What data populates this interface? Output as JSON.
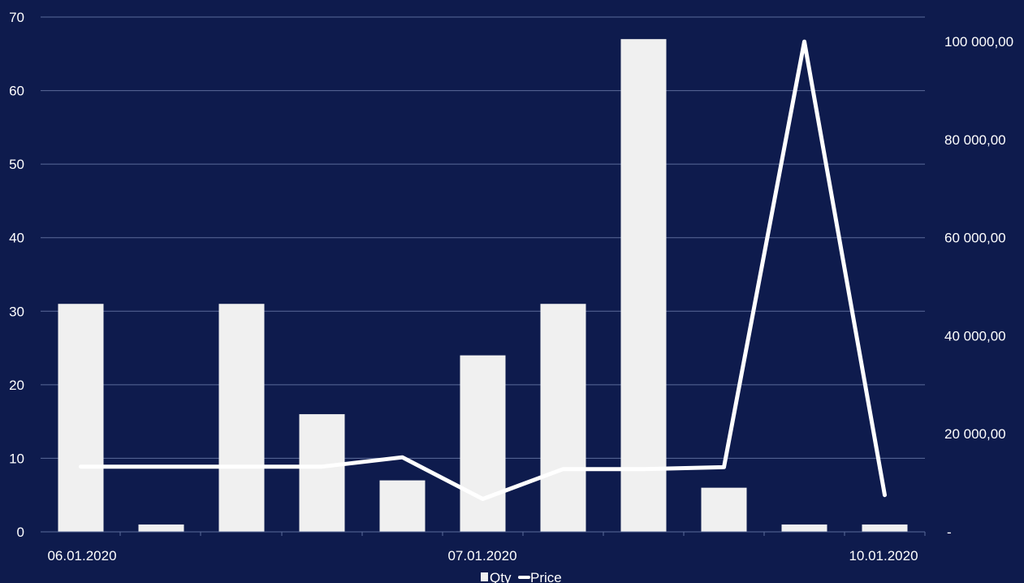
{
  "chart_data": {
    "type": "bar",
    "categories": [
      "06.01.2020",
      "",
      "",
      "",
      "",
      "07.01.2020",
      "",
      "",
      "",
      "",
      "10.01.2020"
    ],
    "series": [
      {
        "name": "Qty",
        "type": "bar",
        "axis": "left",
        "values": [
          31,
          1,
          31,
          16,
          7,
          24,
          31,
          67,
          6,
          1,
          1
        ]
      },
      {
        "name": "Price",
        "type": "line",
        "axis": "right",
        "values": [
          13300,
          13300,
          13300,
          13300,
          15200,
          6700,
          12800,
          12800,
          13200,
          100000,
          7500
        ]
      }
    ],
    "y_left": {
      "min": 0,
      "max": 70,
      "ticks": [
        "0",
        "10",
        "20",
        "30",
        "40",
        "50",
        "60",
        "70"
      ]
    },
    "y_right": {
      "min": 0,
      "max": 105000,
      "ticks": [
        "-",
        "20 000,00",
        "40 000,00",
        "60 000,00",
        "80 000,00",
        "100 000,00"
      ],
      "tick_values": [
        0,
        20000,
        40000,
        60000,
        80000,
        100000
      ]
    },
    "x_tick_labels": [
      "06.01.2020",
      "07.01.2020",
      "10.01.2020"
    ],
    "grid": true,
    "legend": {
      "position": "bottom",
      "items": [
        "Qty",
        "Price"
      ]
    },
    "colors": {
      "background": "#0e1b4d",
      "bar": "#f0f0f0",
      "line": "#ffffff",
      "grid": "#5b6b9a",
      "text": "#ffffff"
    }
  }
}
